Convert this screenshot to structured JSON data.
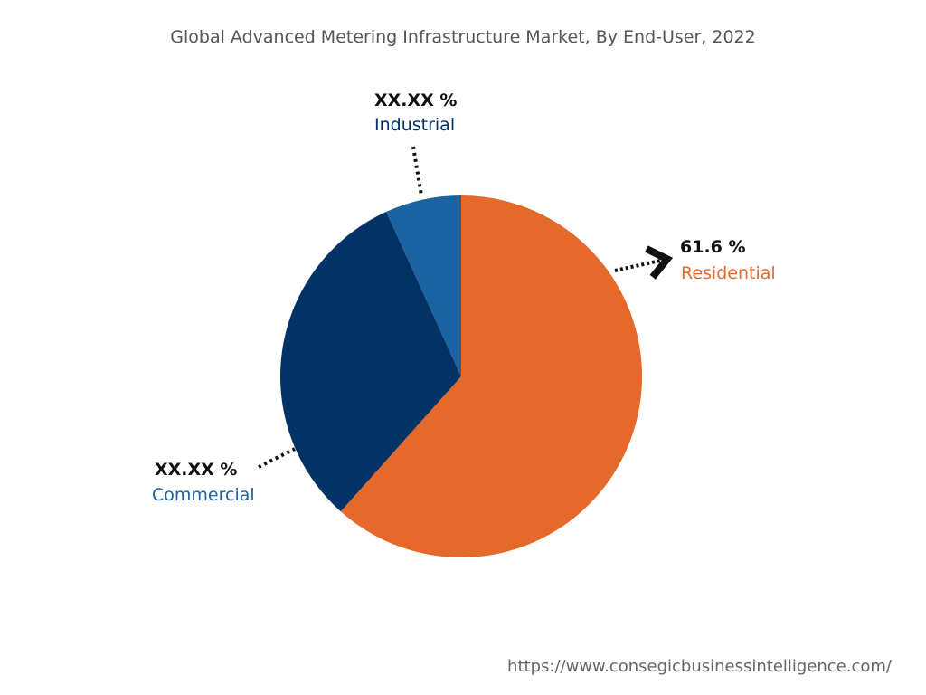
{
  "chart_data": {
    "type": "pie",
    "title": "Global Advanced Metering Infrastructure Market, By End-User, 2022",
    "slices": [
      {
        "name": "Residential",
        "value": 61.6,
        "label": "61.6 %",
        "color": "#E5692A",
        "label_color": "#E5692A"
      },
      {
        "name": "Commercial",
        "value": 31.6,
        "label": "XX.XX %",
        "color": "#033366",
        "label_color": "#1A62A0"
      },
      {
        "name": "Industrial",
        "value": 6.8,
        "label": "XX.XX %",
        "color": "#1A62A0",
        "label_color": "#033366"
      }
    ],
    "start": "top, clockwise"
  },
  "footer": {
    "url": "https://www.consegicbusinessintelligence.com/"
  }
}
